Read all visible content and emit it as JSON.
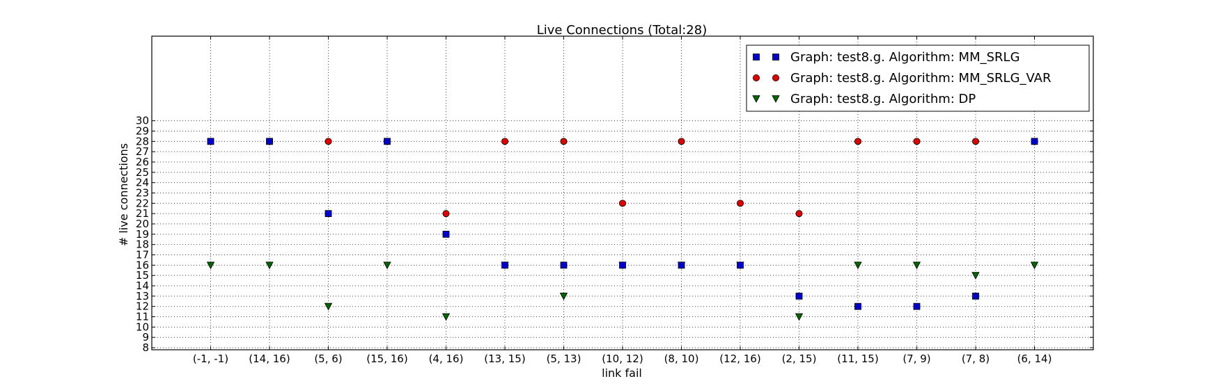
{
  "chart_data": {
    "type": "scatter",
    "title": "Live Connections (Total:28)",
    "xlabel": "link fail",
    "ylabel": "# live connections",
    "categories": [
      "(-1, -1)",
      "(14, 16)",
      "(5, 6)",
      "(15, 16)",
      "(4, 16)",
      "(13, 15)",
      "(5, 13)",
      "(10, 12)",
      "(8, 10)",
      "(12, 16)",
      "(2, 15)",
      "(11, 15)",
      "(7, 9)",
      "(7, 8)",
      "(6, 14)"
    ],
    "yticks": [
      8,
      9,
      10,
      11,
      12,
      13,
      14,
      15,
      16,
      17,
      18,
      19,
      20,
      21,
      22,
      23,
      24,
      25,
      26,
      27,
      28,
      29,
      30
    ],
    "ylim": [
      7.8,
      38.2
    ],
    "grid": true,
    "legend_position": "top-right",
    "series": [
      {
        "name": "Graph: test8.g. Algorithm: MM_SRLG",
        "marker": "square",
        "color": "#0000cc",
        "values": [
          28,
          28,
          21,
          28,
          19,
          16,
          16,
          16,
          16,
          16,
          13,
          12,
          12,
          13,
          28
        ]
      },
      {
        "name": "Graph: test8.g. Algorithm: MM_SRLG_VAR",
        "marker": "circle",
        "color": "#dd0000",
        "values": [
          28,
          28,
          28,
          28,
          21,
          28,
          28,
          22,
          28,
          22,
          21,
          28,
          28,
          28,
          28
        ]
      },
      {
        "name": "Graph: test8.g. Algorithm: DP",
        "marker": "triangle-down",
        "color": "#006400",
        "values": [
          16,
          16,
          12,
          16,
          11,
          16,
          13,
          16,
          16,
          16,
          11,
          16,
          16,
          15,
          16
        ]
      }
    ]
  }
}
